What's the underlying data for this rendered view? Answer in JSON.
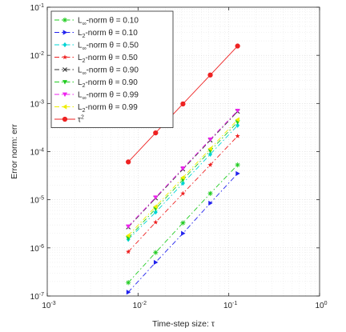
{
  "chart_data": {
    "type": "line",
    "xlabel": "Time-step size: τ",
    "ylabel": "Error norm: err",
    "xscale": "log",
    "yscale": "log",
    "xlim": [
      0.001,
      1
    ],
    "ylim": [
      1e-07,
      0.1
    ],
    "x_ticks": [
      {
        "value": 0.001,
        "base": "10",
        "exp": "-3"
      },
      {
        "value": 0.01,
        "base": "10",
        "exp": "-2"
      },
      {
        "value": 0.1,
        "base": "10",
        "exp": "-1"
      },
      {
        "value": 1,
        "base": "10",
        "exp": "0"
      }
    ],
    "y_ticks": [
      {
        "value": 1e-07,
        "base": "10",
        "exp": "-7"
      },
      {
        "value": 1e-06,
        "base": "10",
        "exp": "-6"
      },
      {
        "value": 1e-05,
        "base": "10",
        "exp": "-5"
      },
      {
        "value": 0.0001,
        "base": "10",
        "exp": "-4"
      },
      {
        "value": 0.001,
        "base": "10",
        "exp": "-3"
      },
      {
        "value": 0.01,
        "base": "10",
        "exp": "-2"
      },
      {
        "value": 0.1,
        "base": "10",
        "exp": "-1"
      }
    ],
    "grid": true,
    "legend_position": "top-left",
    "x": [
      0.0078125,
      0.015625,
      0.03125,
      0.0625,
      0.125
    ],
    "series": [
      {
        "legend": {
          "pre": "L",
          "sub": "∞",
          "post": "-norm θ = 0.10"
        },
        "color": "#22cc22",
        "dash": "6,3,1.5,3",
        "marker": "asterisk",
        "values": [
          1.9e-07,
          8e-07,
          3.3e-06,
          1.35e-05,
          5.3e-05
        ]
      },
      {
        "legend": {
          "pre": "L",
          "sub": "2",
          "post": "-norm θ = 0.10"
        },
        "color": "#2222ee",
        "dash": "6,3,1.5,3",
        "marker": "triangle-right",
        "values": [
          1.2e-07,
          5e-07,
          2e-06,
          8.5e-06,
          3.5e-05
        ]
      },
      {
        "legend": {
          "pre": "L",
          "sub": "∞",
          "post": "-norm θ = 0.50"
        },
        "color": "#00d4d4",
        "dash": "6,3,1.5,3",
        "marker": "diamond",
        "values": [
          1.5e-06,
          5.5e-06,
          2.2e-05,
          8.8e-05,
          0.00035
        ]
      },
      {
        "legend": {
          "pre": "L",
          "sub": "2",
          "post": "-norm θ = 0.50"
        },
        "color": "#ee2222",
        "dash": "6,3,1.5,3",
        "marker": "star",
        "values": [
          8.3e-07,
          3.4e-06,
          1.35e-05,
          5.3e-05,
          0.00021
        ]
      },
      {
        "legend": {
          "pre": "L",
          "sub": "∞",
          "post": "-norm θ = 0.90"
        },
        "color": "#333333",
        "dash": "6,3,1.5,3",
        "marker": "x",
        "values": [
          2.7e-06,
          1.08e-05,
          4.3e-05,
          0.000172,
          0.00068
        ]
      },
      {
        "legend": {
          "pre": "L",
          "sub": "2",
          "post": "-norm θ = 0.90"
        },
        "color": "#22cc22",
        "dash": "6,3,1.5,3",
        "marker": "triangle-down",
        "values": [
          1.6e-06,
          6.5e-06,
          2.6e-05,
          0.000104,
          0.00041
        ]
      },
      {
        "legend": {
          "pre": "L",
          "sub": "∞",
          "post": "-norm θ = 0.99"
        },
        "color": "#ee22ee",
        "dash": "6,3,1.5,3",
        "marker": "triangle-down",
        "values": [
          2.8e-06,
          1.12e-05,
          4.5e-05,
          0.00018,
          0.00071
        ]
      },
      {
        "legend": {
          "pre": "L",
          "sub": "2",
          "post": "-norm θ = 0.99"
        },
        "color": "#eeee00",
        "dash": "6,3,1.5,3",
        "marker": "triangle-left",
        "values": [
          1.8e-06,
          7.2e-06,
          2.9e-05,
          0.000115,
          0.00046
        ]
      },
      {
        "legend": {
          "pre": "τ",
          "sup": "2",
          "post": ""
        },
        "color": "#ee2222",
        "dash": "",
        "marker": "circle",
        "values": [
          6.1e-05,
          0.000245,
          0.00098,
          0.0039,
          0.0156
        ]
      }
    ]
  }
}
